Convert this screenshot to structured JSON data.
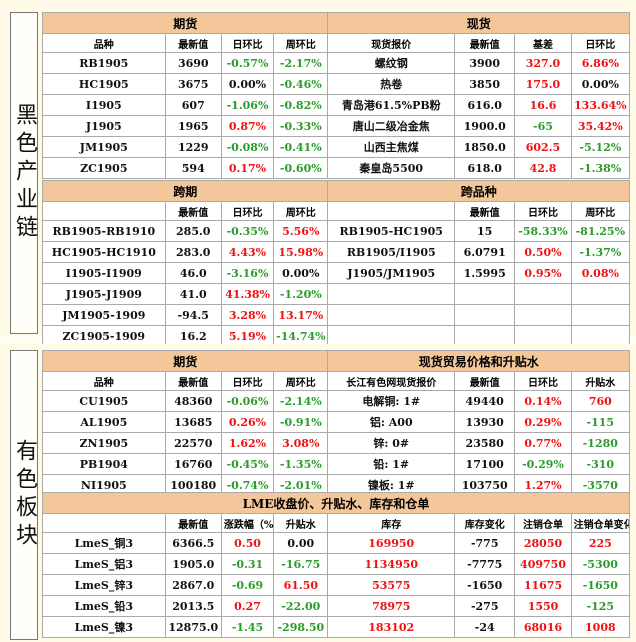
{
  "ferrous": {
    "side_label": "黑色产业链",
    "futures_title": "期货",
    "spot_title": "现货",
    "futures_head": [
      "品种",
      "最新值",
      "日环比",
      "周环比"
    ],
    "spot_head": [
      "现货报价",
      "最新值",
      "基差",
      "日环比"
    ],
    "rows": [
      {
        "f": [
          [
            "RB1905",
            "k"
          ],
          [
            "3690",
            "k"
          ],
          [
            "-0.57%",
            "g"
          ],
          [
            "-2.17%",
            "g"
          ]
        ],
        "s": [
          [
            "螺纹钢",
            "k"
          ],
          [
            "3900",
            "k"
          ],
          [
            "327.0",
            "r"
          ],
          [
            "6.86%",
            "r"
          ]
        ]
      },
      {
        "f": [
          [
            "HC1905",
            "k"
          ],
          [
            "3675",
            "k"
          ],
          [
            "0.00%",
            "k"
          ],
          [
            "-0.46%",
            "g"
          ]
        ],
        "s": [
          [
            "热卷",
            "k"
          ],
          [
            "3850",
            "k"
          ],
          [
            "175.0",
            "r"
          ],
          [
            "0.00%",
            "k"
          ]
        ]
      },
      {
        "f": [
          [
            "I1905",
            "k"
          ],
          [
            "607",
            "k"
          ],
          [
            "-1.06%",
            "g"
          ],
          [
            "-0.82%",
            "g"
          ]
        ],
        "s": [
          [
            "青岛港61.5%PB粉",
            "k"
          ],
          [
            "616.0",
            "k"
          ],
          [
            "16.6",
            "r"
          ],
          [
            "133.64%",
            "r"
          ]
        ]
      },
      {
        "f": [
          [
            "J1905",
            "k"
          ],
          [
            "1965",
            "k"
          ],
          [
            "0.87%",
            "r"
          ],
          [
            "-0.33%",
            "g"
          ]
        ],
        "s": [
          [
            "唐山二级冶金焦",
            "k"
          ],
          [
            "1900.0",
            "k"
          ],
          [
            "-65",
            "g"
          ],
          [
            "35.42%",
            "r"
          ]
        ]
      },
      {
        "f": [
          [
            "JM1905",
            "k"
          ],
          [
            "1229",
            "k"
          ],
          [
            "-0.08%",
            "g"
          ],
          [
            "-0.41%",
            "g"
          ]
        ],
        "s": [
          [
            "山西主焦煤",
            "k"
          ],
          [
            "1850.0",
            "k"
          ],
          [
            "602.5",
            "r"
          ],
          [
            "-5.12%",
            "g"
          ]
        ]
      },
      {
        "f": [
          [
            "ZC1905",
            "k"
          ],
          [
            "594",
            "k"
          ],
          [
            "0.17%",
            "r"
          ],
          [
            "-0.60%",
            "g"
          ]
        ],
        "s": [
          [
            "秦皇岛5500",
            "k"
          ],
          [
            "618.0",
            "k"
          ],
          [
            "42.8",
            "r"
          ],
          [
            "-1.38%",
            "g"
          ]
        ]
      }
    ],
    "spread_title": "跨期",
    "cross_title": "跨品种",
    "spread_head": [
      "",
      "最新值",
      "日环比",
      "周环比"
    ],
    "cross_head": [
      "",
      "最新值",
      "日环比",
      "周环比"
    ],
    "spread_rows": [
      {
        "a": [
          [
            "RB1905-RB1910",
            "k"
          ],
          [
            "285.0",
            "k"
          ],
          [
            "-0.35%",
            "g"
          ],
          [
            "5.56%",
            "r"
          ]
        ],
        "b": [
          [
            "RB1905-HC1905",
            "k"
          ],
          [
            "15",
            "k"
          ],
          [
            "-58.33%",
            "g"
          ],
          [
            "-81.25%",
            "g"
          ]
        ]
      },
      {
        "a": [
          [
            "HC1905-HC1910",
            "k"
          ],
          [
            "283.0",
            "k"
          ],
          [
            "4.43%",
            "r"
          ],
          [
            "15.98%",
            "r"
          ]
        ],
        "b": [
          [
            "RB1905/I1905",
            "k"
          ],
          [
            "6.0791",
            "k"
          ],
          [
            "0.50%",
            "r"
          ],
          [
            "-1.37%",
            "g"
          ]
        ]
      },
      {
        "a": [
          [
            "I1905-I1909",
            "k"
          ],
          [
            "46.0",
            "k"
          ],
          [
            "-3.16%",
            "g"
          ],
          [
            "0.00%",
            "k"
          ]
        ],
        "b": [
          [
            "J1905/JM1905",
            "k"
          ],
          [
            "1.5995",
            "k"
          ],
          [
            "0.95%",
            "r"
          ],
          [
            "0.08%",
            "r"
          ]
        ]
      },
      {
        "a": [
          [
            "J1905-J1909",
            "k"
          ],
          [
            "41.0",
            "k"
          ],
          [
            "41.38%",
            "r"
          ],
          [
            "-1.20%",
            "g"
          ]
        ],
        "b": [
          [
            "",
            "k"
          ],
          [
            "",
            "k"
          ],
          [
            "",
            "k"
          ],
          [
            "",
            "k"
          ]
        ]
      },
      {
        "a": [
          [
            "JM1905-1909",
            "k"
          ],
          [
            "-94.5",
            "k"
          ],
          [
            "3.28%",
            "r"
          ],
          [
            "13.17%",
            "r"
          ]
        ],
        "b": [
          [
            "",
            "k"
          ],
          [
            "",
            "k"
          ],
          [
            "",
            "k"
          ],
          [
            "",
            "k"
          ]
        ]
      },
      {
        "a": [
          [
            "ZC1905-1909",
            "k"
          ],
          [
            "16.2",
            "k"
          ],
          [
            "5.19%",
            "r"
          ],
          [
            "-14.74%",
            "g"
          ]
        ],
        "b": [
          [
            "",
            "k"
          ],
          [
            "",
            "k"
          ],
          [
            "",
            "k"
          ],
          [
            "",
            "k"
          ]
        ]
      }
    ]
  },
  "nonferrous": {
    "side_label": "有色板块",
    "futures_title": "期货",
    "spot_title": "现货贸易价格和升贴水",
    "futures_head": [
      "品种",
      "最新值",
      "日环比",
      "周环比"
    ],
    "spot_head": [
      "长江有色网现货报价",
      "最新值",
      "日环比",
      "升贴水"
    ],
    "rows": [
      {
        "f": [
          [
            "CU1905",
            "k"
          ],
          [
            "48360",
            "k"
          ],
          [
            "-0.06%",
            "g"
          ],
          [
            "-2.14%",
            "g"
          ]
        ],
        "s": [
          [
            "电解铜: 1#",
            "k"
          ],
          [
            "49440",
            "k"
          ],
          [
            "0.14%",
            "r"
          ],
          [
            "760",
            "r"
          ]
        ]
      },
      {
        "f": [
          [
            "AL1905",
            "k"
          ],
          [
            "13685",
            "k"
          ],
          [
            "0.26%",
            "r"
          ],
          [
            "-0.91%",
            "g"
          ]
        ],
        "s": [
          [
            "铝: A00",
            "k"
          ],
          [
            "13930",
            "k"
          ],
          [
            "0.29%",
            "r"
          ],
          [
            "-115",
            "g"
          ]
        ]
      },
      {
        "f": [
          [
            "ZN1905",
            "k"
          ],
          [
            "22570",
            "k"
          ],
          [
            "1.62%",
            "r"
          ],
          [
            "3.08%",
            "r"
          ]
        ],
        "s": [
          [
            "锌: 0#",
            "k"
          ],
          [
            "23580",
            "k"
          ],
          [
            "0.77%",
            "r"
          ],
          [
            "-1280",
            "g"
          ]
        ]
      },
      {
        "f": [
          [
            "PB1904",
            "k"
          ],
          [
            "16760",
            "k"
          ],
          [
            "-0.45%",
            "g"
          ],
          [
            "-1.35%",
            "g"
          ]
        ],
        "s": [
          [
            "铅: 1#",
            "k"
          ],
          [
            "17100",
            "k"
          ],
          [
            "-0.29%",
            "g"
          ],
          [
            "-310",
            "g"
          ]
        ]
      },
      {
        "f": [
          [
            "NI1905",
            "k"
          ],
          [
            "100180",
            "k"
          ],
          [
            "-0.74%",
            "g"
          ],
          [
            "-2.01%",
            "g"
          ]
        ],
        "s": [
          [
            "镍板: 1#",
            "k"
          ],
          [
            "103750",
            "k"
          ],
          [
            "1.27%",
            "r"
          ],
          [
            "-3570",
            "g"
          ]
        ]
      }
    ],
    "lme_title": "LME收盘价、升贴水、库存和仓单",
    "lme_head": [
      "",
      "最新值",
      "涨跌幅（%）",
      "升贴水",
      "库存",
      "库存变化",
      "注销仓单",
      "注销仓单变化"
    ],
    "lme_rows": [
      [
        [
          "LmeS_铜3",
          "k"
        ],
        [
          "6366.5",
          "k"
        ],
        [
          "0.50",
          "r"
        ],
        [
          "0.00",
          "k"
        ],
        [
          "169950",
          "r"
        ],
        [
          "-775",
          "k"
        ],
        [
          "28050",
          "r"
        ],
        [
          "225",
          "r"
        ]
      ],
      [
        [
          "LmeS_铝3",
          "k"
        ],
        [
          "1905.0",
          "k"
        ],
        [
          "-0.31",
          "g"
        ],
        [
          "-16.75",
          "g"
        ],
        [
          "1134950",
          "r"
        ],
        [
          "-7775",
          "k"
        ],
        [
          "409750",
          "r"
        ],
        [
          "-5300",
          "g"
        ]
      ],
      [
        [
          "LmeS_锌3",
          "k"
        ],
        [
          "2867.0",
          "k"
        ],
        [
          "-0.69",
          "g"
        ],
        [
          "61.50",
          "r"
        ],
        [
          "53575",
          "r"
        ],
        [
          "-1650",
          "k"
        ],
        [
          "11675",
          "r"
        ],
        [
          "-1650",
          "g"
        ]
      ],
      [
        [
          "LmeS_铅3",
          "k"
        ],
        [
          "2013.5",
          "k"
        ],
        [
          "0.27",
          "r"
        ],
        [
          "-22.00",
          "g"
        ],
        [
          "78975",
          "r"
        ],
        [
          "-275",
          "k"
        ],
        [
          "1550",
          "r"
        ],
        [
          "-125",
          "g"
        ]
      ],
      [
        [
          "LmeS_镍3",
          "k"
        ],
        [
          "12875.0",
          "k"
        ],
        [
          "-1.45",
          "g"
        ],
        [
          "-298.50",
          "g"
        ],
        [
          "183102",
          "r"
        ],
        [
          "-24",
          "k"
        ],
        [
          "68016",
          "r"
        ],
        [
          "1008",
          "r"
        ]
      ]
    ]
  }
}
